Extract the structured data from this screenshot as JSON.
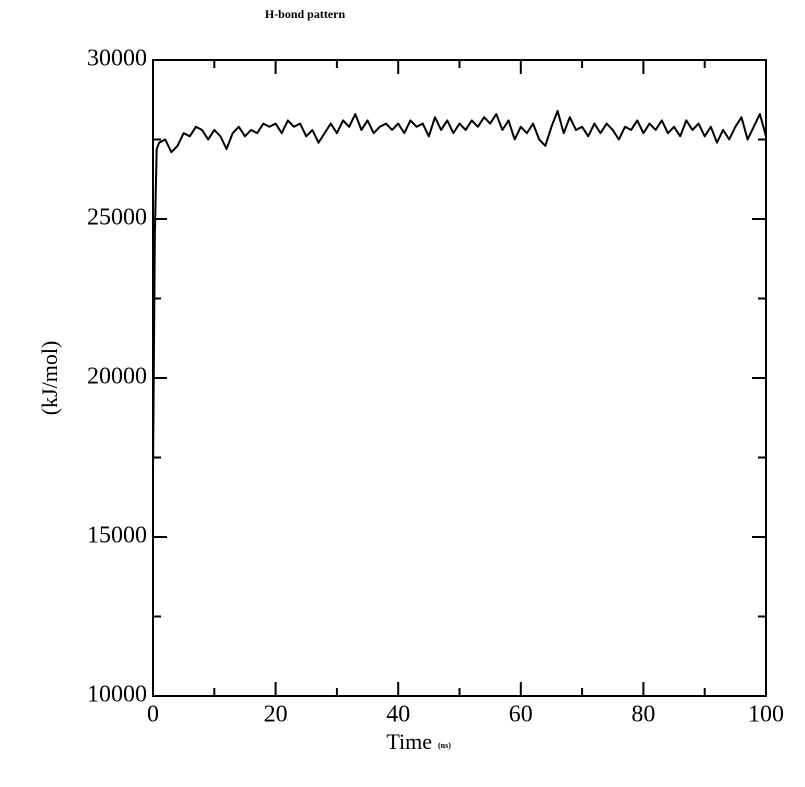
{
  "chart_data": {
    "type": "line",
    "title": "H-bond pattern",
    "xlabel": "Time",
    "xlabel_unit": "(ns)",
    "ylabel": "(kJ/mol)",
    "x": [
      0,
      0.3,
      0.6,
      1,
      2,
      3,
      4,
      5,
      6,
      7,
      8,
      9,
      10,
      11,
      12,
      13,
      14,
      15,
      16,
      17,
      18,
      19,
      20,
      21,
      22,
      23,
      24,
      25,
      26,
      27,
      28,
      29,
      30,
      31,
      32,
      33,
      34,
      35,
      36,
      37,
      38,
      39,
      40,
      41,
      42,
      43,
      44,
      45,
      46,
      47,
      48,
      49,
      50,
      51,
      52,
      53,
      54,
      55,
      56,
      57,
      58,
      59,
      60,
      61,
      62,
      63,
      64,
      65,
      66,
      67,
      68,
      69,
      70,
      71,
      72,
      73,
      74,
      75,
      76,
      77,
      78,
      79,
      80,
      81,
      82,
      83,
      84,
      85,
      86,
      87,
      88,
      89,
      90,
      91,
      92,
      93,
      94,
      95,
      96,
      97,
      98,
      99,
      100
    ],
    "series": [
      {
        "name": "H-bond pattern",
        "color": "#000000",
        "values": [
          17000,
          24500,
          27200,
          27400,
          27500,
          27100,
          27300,
          27700,
          27600,
          27900,
          27800,
          27500,
          27800,
          27600,
          27200,
          27700,
          27900,
          27600,
          27800,
          27700,
          28000,
          27900,
          28000,
          27700,
          28100,
          27900,
          28000,
          27600,
          27800,
          27400,
          27700,
          28000,
          27700,
          28100,
          27900,
          28300,
          27800,
          28100,
          27700,
          27900,
          28000,
          27800,
          28000,
          27700,
          28100,
          27900,
          28000,
          27600,
          28200,
          27800,
          28100,
          27700,
          28000,
          27800,
          28100,
          27900,
          28200,
          28000,
          28300,
          27800,
          28100,
          27500,
          27900,
          27700,
          28000,
          27500,
          27300,
          27900,
          28400,
          27700,
          28200,
          27800,
          27900,
          27600,
          28000,
          27700,
          28000,
          27800,
          27500,
          27900,
          27800,
          28100,
          27700,
          28000,
          27800,
          28100,
          27700,
          27900,
          27600,
          28100,
          27800,
          28000,
          27600,
          27900,
          27400,
          27800,
          27500,
          27900,
          28200,
          27500,
          27900,
          28300,
          27600
        ]
      }
    ],
    "xlim": [
      0,
      100
    ],
    "xticks": [
      0,
      20,
      40,
      60,
      80,
      100
    ],
    "xminorticks": [
      10,
      30,
      50,
      70,
      90
    ],
    "ylim": [
      10000,
      30000
    ],
    "yticks": [
      10000,
      15000,
      20000,
      25000,
      30000
    ],
    "yminorticks": [
      12500,
      17500,
      22500,
      27500
    ]
  }
}
